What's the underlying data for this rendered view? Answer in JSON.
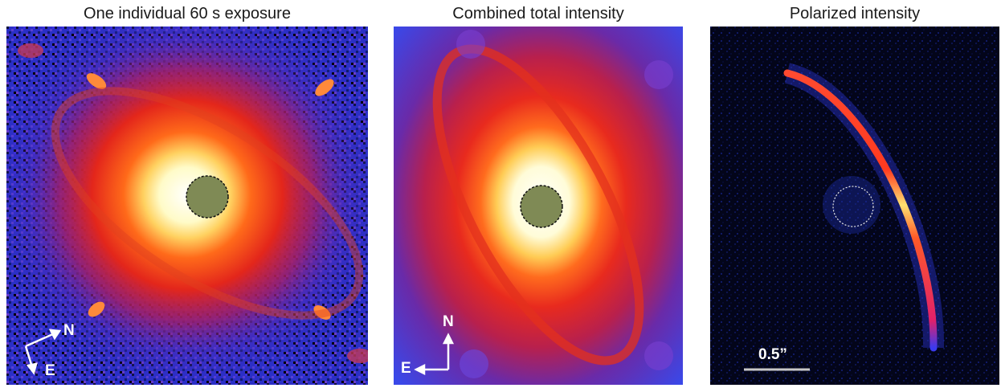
{
  "panels": [
    {
      "title": "One individual 60 s exposure",
      "compass": {
        "north": "N",
        "east": "E"
      }
    },
    {
      "title": "Combined total intensity",
      "compass": {
        "north": "N",
        "east": "E"
      }
    },
    {
      "title": "Polarized intensity",
      "scalebar": {
        "label": "0.5”"
      }
    }
  ]
}
